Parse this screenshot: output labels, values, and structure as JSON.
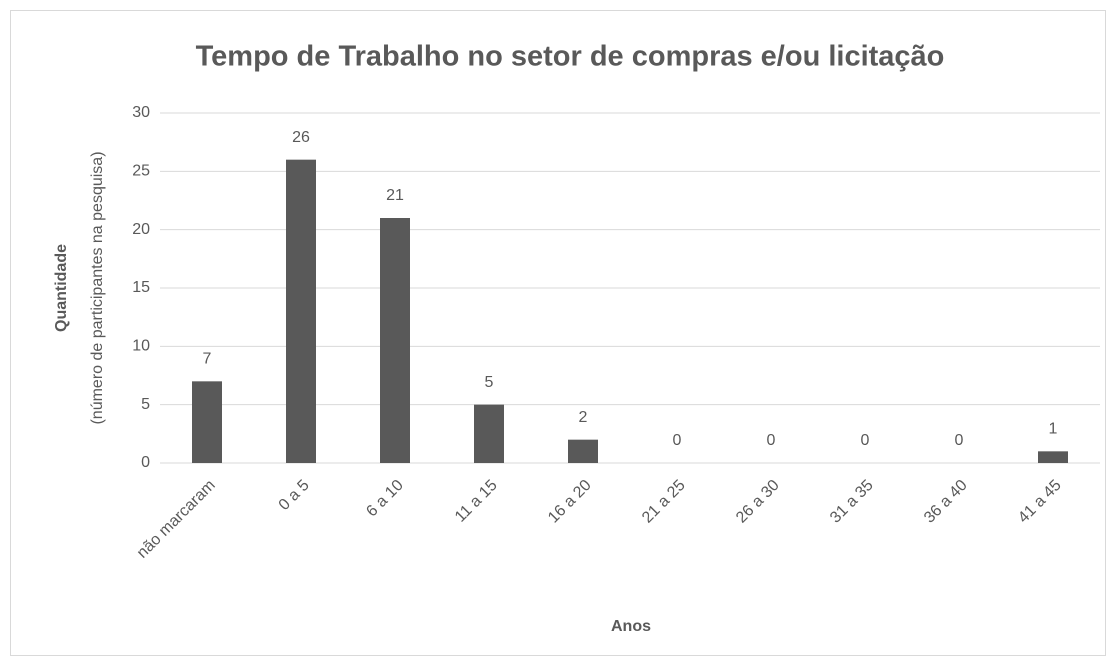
{
  "chart_data": {
    "type": "bar",
    "title": "Tempo de Trabalho no setor de compras e/ou licitação",
    "xlabel": "Anos",
    "ylabel": "Quantidade",
    "ylabel_note": "(número de participantes na pesquisa)",
    "categories": [
      "não marcaram",
      "0 a 5",
      "6 a 10",
      "11 a 15",
      "16 a 20",
      "21 a 25",
      "26 a 30",
      "31 a 35",
      "36 a 40",
      "41 a 45"
    ],
    "values": [
      7,
      26,
      21,
      5,
      2,
      0,
      0,
      0,
      0,
      1
    ],
    "color": "#595959",
    "ylim": [
      0,
      30
    ],
    "yticks": [
      0,
      5,
      10,
      15,
      20,
      25,
      30
    ],
    "grid": true
  }
}
